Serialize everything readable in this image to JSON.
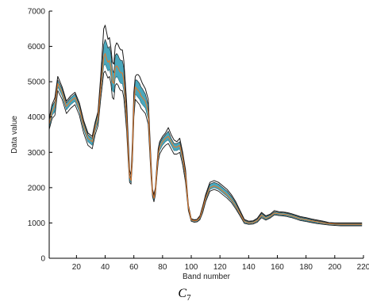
{
  "figure": {
    "caption_main": "C",
    "caption_sub": "7"
  },
  "chart_data": {
    "type": "line",
    "title": "",
    "xlabel": "Band number",
    "ylabel": "Data value",
    "xlim": [
      1,
      220
    ],
    "ylim": [
      0,
      7000
    ],
    "xticks": [
      20,
      40,
      60,
      80,
      100,
      120,
      140,
      160,
      180,
      200,
      220
    ],
    "yticks": [
      0,
      1000,
      2000,
      3000,
      4000,
      5000,
      6000,
      7000
    ],
    "grid": false,
    "legend": "none",
    "colors": {
      "outer_envelope": "#1a1a1a",
      "band_fill": "#2a98b0",
      "inner_line": "#e07a2e",
      "axis": "#000000"
    },
    "series": [
      {
        "role": "upper-envelope",
        "x": [
          1,
          3,
          5,
          7,
          10,
          13,
          16,
          19,
          22,
          25,
          28,
          31,
          33,
          35,
          37,
          39,
          40,
          41,
          42,
          43,
          44,
          45,
          46,
          47,
          48,
          49,
          50,
          51,
          52,
          53,
          54,
          55,
          56,
          57,
          58,
          59,
          60,
          61,
          62,
          63,
          64,
          65,
          66,
          68,
          70,
          72,
          73,
          74,
          75,
          76,
          77,
          78,
          80,
          82,
          84,
          86,
          88,
          90,
          92,
          94,
          96,
          98,
          100,
          102,
          104,
          106,
          108,
          110,
          113,
          116,
          119,
          122,
          125,
          128,
          131,
          134,
          137,
          140,
          143,
          146,
          149,
          152,
          155,
          158,
          161,
          164,
          166,
          168,
          170,
          173,
          176,
          180,
          184,
          188,
          192,
          196,
          200,
          204,
          208,
          212,
          216,
          219
        ],
        "y": [
          3950,
          4350,
          4550,
          5150,
          4850,
          4450,
          4600,
          4700,
          4400,
          3900,
          3550,
          3450,
          3850,
          4150,
          5200,
          6500,
          6600,
          6400,
          6200,
          6250,
          5950,
          5550,
          5500,
          6000,
          6100,
          6050,
          5950,
          5900,
          5900,
          5600,
          5000,
          4400,
          3400,
          2500,
          2350,
          3300,
          4700,
          5150,
          5200,
          5200,
          5150,
          5050,
          4950,
          4800,
          4500,
          2700,
          1950,
          1800,
          2000,
          2600,
          3100,
          3300,
          3450,
          3550,
          3700,
          3500,
          3350,
          3300,
          3400,
          3000,
          2500,
          1500,
          1120,
          1090,
          1100,
          1200,
          1480,
          1800,
          2150,
          2200,
          2150,
          2050,
          1950,
          1800,
          1600,
          1350,
          1100,
          1050,
          1060,
          1130,
          1300,
          1200,
          1250,
          1350,
          1320,
          1310,
          1300,
          1280,
          1260,
          1220,
          1180,
          1150,
          1110,
          1080,
          1050,
          1010,
          1000,
          1000,
          1000,
          1000,
          1000,
          1000
        ]
      },
      {
        "role": "band-top",
        "x": [
          1,
          3,
          5,
          7,
          10,
          13,
          16,
          19,
          22,
          25,
          28,
          31,
          33,
          35,
          37,
          39,
          40,
          41,
          42,
          43,
          44,
          45,
          46,
          47,
          48,
          49,
          50,
          51,
          52,
          53,
          54,
          55,
          56,
          57,
          58,
          59,
          60,
          61,
          62,
          63,
          64,
          65,
          66,
          68,
          70,
          72,
          73,
          74,
          75,
          76,
          77,
          78,
          80,
          82,
          84,
          86,
          88,
          90,
          92,
          94,
          96,
          98,
          100,
          102,
          104,
          106,
          108,
          110,
          113,
          116,
          119,
          122,
          125,
          128,
          131,
          134,
          137,
          140,
          143,
          146,
          149,
          152,
          155,
          158,
          161,
          164,
          166,
          168,
          170,
          173,
          176,
          180,
          184,
          188,
          192,
          196,
          200,
          204,
          208,
          212,
          216,
          219
        ],
        "y": [
          3900,
          4300,
          4450,
          5050,
          4800,
          4400,
          4550,
          4650,
          4350,
          3850,
          3500,
          3400,
          3800,
          4100,
          5050,
          6050,
          6200,
          6100,
          5950,
          6000,
          5800,
          5350,
          5250,
          5750,
          5800,
          5750,
          5650,
          5600,
          5600,
          5400,
          4800,
          4200,
          3250,
          2400,
          2250,
          3150,
          4550,
          5050,
          5050,
          5000,
          4950,
          4850,
          4800,
          4650,
          4350,
          2600,
          1900,
          1750,
          1950,
          2550,
          3050,
          3250,
          3400,
          3500,
          3600,
          3400,
          3250,
          3250,
          3300,
          2950,
          2450,
          1480,
          1110,
          1080,
          1090,
          1180,
          1450,
          1750,
          2100,
          2150,
          2100,
          2000,
          1900,
          1750,
          1560,
          1320,
          1080,
          1030,
          1040,
          1110,
          1270,
          1180,
          1230,
          1320,
          1300,
          1290,
          1280,
          1260,
          1240,
          1200,
          1160,
          1130,
          1090,
          1060,
          1030,
          1000,
          990,
          990,
          990,
          990,
          990,
          990
        ]
      },
      {
        "role": "median",
        "x": [
          1,
          3,
          5,
          7,
          10,
          13,
          16,
          19,
          22,
          25,
          28,
          31,
          33,
          35,
          37,
          39,
          40,
          41,
          42,
          43,
          44,
          45,
          46,
          47,
          48,
          49,
          50,
          51,
          52,
          53,
          54,
          55,
          56,
          57,
          58,
          59,
          60,
          61,
          62,
          63,
          64,
          65,
          66,
          68,
          70,
          72,
          73,
          74,
          75,
          76,
          77,
          78,
          80,
          82,
          84,
          86,
          88,
          90,
          92,
          94,
          96,
          98,
          100,
          102,
          104,
          106,
          108,
          110,
          113,
          116,
          119,
          122,
          125,
          128,
          131,
          134,
          137,
          140,
          143,
          146,
          149,
          152,
          155,
          158,
          161,
          164,
          166,
          168,
          170,
          173,
          176,
          180,
          184,
          188,
          192,
          196,
          200,
          204,
          208,
          212,
          216,
          219
        ],
        "y": [
          3800,
          4150,
          4300,
          4950,
          4700,
          4300,
          4450,
          4550,
          4250,
          3750,
          3400,
          3300,
          3700,
          3950,
          4850,
          5700,
          5800,
          5650,
          5550,
          5600,
          5400,
          5000,
          4950,
          5400,
          5450,
          5400,
          5300,
          5250,
          5250,
          5050,
          4500,
          3950,
          3050,
          2300,
          2200,
          3000,
          4350,
          4850,
          4800,
          4750,
          4700,
          4600,
          4550,
          4450,
          4150,
          2500,
          1850,
          1700,
          1900,
          2450,
          2950,
          3150,
          3300,
          3400,
          3450,
          3300,
          3150,
          3150,
          3200,
          2850,
          2350,
          1440,
          1090,
          1060,
          1070,
          1150,
          1400,
          1700,
          2000,
          2050,
          2000,
          1900,
          1800,
          1660,
          1480,
          1260,
          1040,
          1000,
          1010,
          1070,
          1220,
          1130,
          1190,
          1280,
          1260,
          1250,
          1240,
          1220,
          1200,
          1160,
          1120,
          1090,
          1060,
          1030,
          1000,
          980,
          970,
          960,
          960,
          960,
          960,
          960
        ]
      },
      {
        "role": "band-bottom",
        "x": [
          1,
          3,
          5,
          7,
          10,
          13,
          16,
          19,
          22,
          25,
          28,
          31,
          33,
          35,
          37,
          39,
          40,
          41,
          42,
          43,
          44,
          45,
          46,
          47,
          48,
          49,
          50,
          51,
          52,
          53,
          54,
          55,
          56,
          57,
          58,
          59,
          60,
          61,
          62,
          63,
          64,
          65,
          66,
          68,
          70,
          72,
          73,
          74,
          75,
          76,
          77,
          78,
          80,
          82,
          84,
          86,
          88,
          90,
          92,
          94,
          96,
          98,
          100,
          102,
          104,
          106,
          108,
          110,
          113,
          116,
          119,
          122,
          125,
          128,
          131,
          134,
          137,
          140,
          143,
          146,
          149,
          152,
          155,
          158,
          161,
          164,
          166,
          168,
          170,
          173,
          176,
          180,
          184,
          188,
          192,
          196,
          200,
          204,
          208,
          212,
          216,
          219
        ],
        "y": [
          3700,
          4050,
          4150,
          4850,
          4600,
          4200,
          4350,
          4450,
          4150,
          3650,
          3300,
          3200,
          3600,
          3850,
          4700,
          5450,
          5500,
          5400,
          5300,
          5350,
          5150,
          4750,
          4700,
          5100,
          5150,
          5100,
          5000,
          4950,
          4950,
          4750,
          4300,
          3750,
          2900,
          2200,
          2150,
          2850,
          4150,
          4650,
          4600,
          4550,
          4500,
          4400,
          4350,
          4250,
          3950,
          2400,
          1800,
          1650,
          1850,
          2350,
          2850,
          3050,
          3200,
          3300,
          3350,
          3200,
          3050,
          3050,
          3100,
          2750,
          2250,
          1400,
          1070,
          1040,
          1050,
          1120,
          1350,
          1650,
          1950,
          2000,
          1950,
          1850,
          1750,
          1620,
          1440,
          1230,
          1010,
          980,
          990,
          1040,
          1180,
          1100,
          1160,
          1250,
          1230,
          1220,
          1210,
          1190,
          1170,
          1130,
          1090,
          1060,
          1030,
          1000,
          980,
          960,
          950,
          940,
          940,
          940,
          940,
          940
        ]
      },
      {
        "role": "lower-envelope",
        "x": [
          1,
          3,
          5,
          7,
          10,
          13,
          16,
          19,
          22,
          25,
          28,
          31,
          33,
          35,
          37,
          39,
          40,
          41,
          42,
          43,
          44,
          45,
          46,
          47,
          48,
          49,
          50,
          51,
          52,
          53,
          54,
          55,
          56,
          57,
          58,
          59,
          60,
          61,
          62,
          63,
          64,
          65,
          66,
          68,
          70,
          72,
          73,
          74,
          75,
          76,
          77,
          78,
          80,
          82,
          84,
          86,
          88,
          90,
          92,
          94,
          96,
          98,
          100,
          102,
          104,
          106,
          108,
          110,
          113,
          116,
          119,
          122,
          125,
          128,
          131,
          134,
          137,
          140,
          143,
          146,
          149,
          152,
          155,
          158,
          161,
          164,
          166,
          168,
          170,
          173,
          176,
          180,
          184,
          188,
          192,
          196,
          200,
          204,
          208,
          212,
          216,
          219
        ],
        "y": [
          3650,
          3950,
          4050,
          4750,
          4500,
          4100,
          4250,
          4350,
          4050,
          3550,
          3200,
          3100,
          3500,
          3750,
          4550,
          5250,
          5300,
          5200,
          5100,
          5150,
          4950,
          4550,
          4500,
          4900,
          4950,
          4900,
          4800,
          4750,
          4750,
          4550,
          4100,
          3600,
          2800,
          2150,
          2100,
          2750,
          4000,
          4500,
          4450,
          4400,
          4350,
          4250,
          4200,
          4100,
          3800,
          2300,
          1750,
          1600,
          1800,
          2300,
          2750,
          2950,
          3100,
          3200,
          3250,
          3100,
          2950,
          2950,
          3000,
          2650,
          2150,
          1350,
          1050,
          1020,
          1030,
          1090,
          1300,
          1600,
          1900,
          1950,
          1900,
          1800,
          1700,
          1580,
          1400,
          1200,
          990,
          960,
          970,
          1020,
          1150,
          1080,
          1140,
          1230,
          1210,
          1200,
          1190,
          1170,
          1150,
          1110,
          1070,
          1040,
          1010,
          980,
          960,
          940,
          930,
          920,
          920,
          920,
          920,
          920
        ]
      }
    ]
  }
}
